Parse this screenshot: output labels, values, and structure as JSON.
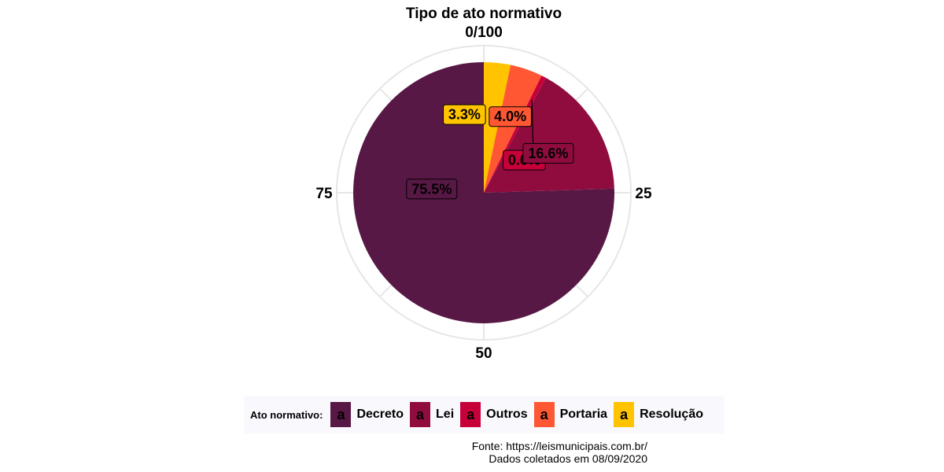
{
  "chart_data": {
    "type": "pie",
    "title": "Tipo de ato normativo",
    "angle_ticks": [
      "0/100",
      "25",
      "50",
      "75"
    ],
    "legend_title": "Ato normativo:",
    "legend_position": "bottom",
    "grid": true,
    "slices": [
      {
        "label": "Resolução",
        "value": 3.3,
        "label_text": "3.3%",
        "color": "#FFC300"
      },
      {
        "label": "Portaria",
        "value": 4.0,
        "label_text": "4.0%",
        "color": "#FF5733"
      },
      {
        "label": "Outros",
        "value": 0.6,
        "label_text": "0.6%",
        "color": "#C70039"
      },
      {
        "label": "Lei",
        "value": 16.6,
        "label_text": "16.6%",
        "color": "#900C3F"
      },
      {
        "label": "Decreto",
        "value": 75.5,
        "label_text": "75.5%",
        "color": "#581845"
      }
    ],
    "legend_order": [
      "Decreto",
      "Lei",
      "Outros",
      "Portaria",
      "Resolução"
    ],
    "legend_key_glyph": "a"
  },
  "caption": {
    "line1": "Fonte: https://leismunicipais.com.br/",
    "line2": "Dados coletados em 08/09/2020"
  }
}
